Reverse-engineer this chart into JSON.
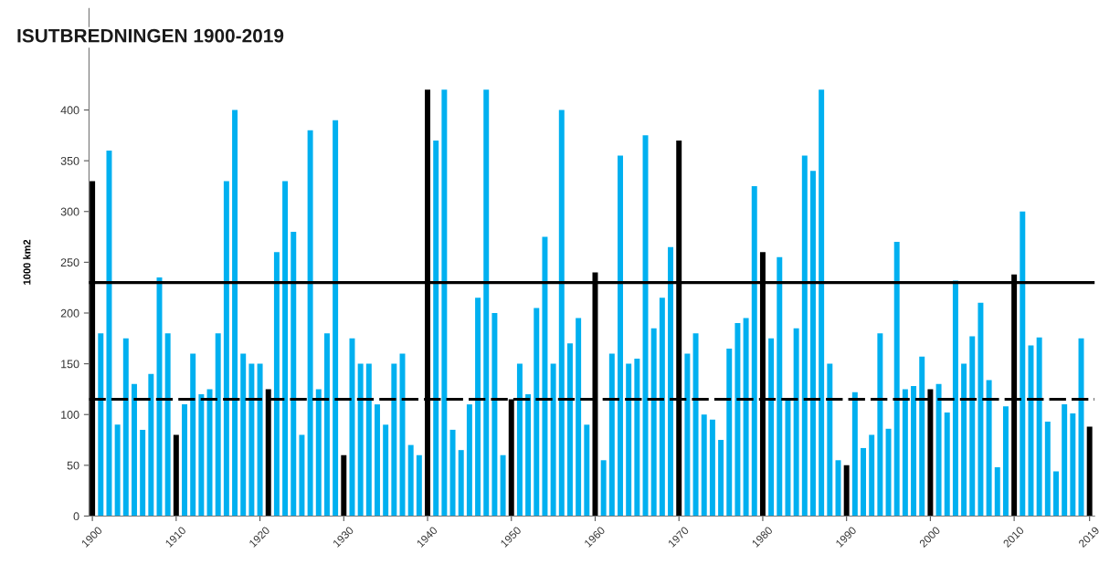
{
  "chart_data": {
    "type": "bar",
    "title": "ISUTBREDNINGEN 1900-2019",
    "ylabel": "1000 km2",
    "x": [
      1900,
      1901,
      1902,
      1903,
      1904,
      1905,
      1906,
      1907,
      1908,
      1909,
      1910,
      1911,
      1912,
      1913,
      1914,
      1915,
      1916,
      1917,
      1918,
      1919,
      1920,
      1921,
      1922,
      1923,
      1924,
      1925,
      1926,
      1927,
      1928,
      1929,
      1930,
      1931,
      1932,
      1933,
      1934,
      1935,
      1936,
      1937,
      1938,
      1939,
      1940,
      1941,
      1942,
      1943,
      1944,
      1945,
      1946,
      1947,
      1948,
      1949,
      1950,
      1951,
      1952,
      1953,
      1954,
      1955,
      1956,
      1957,
      1958,
      1959,
      1960,
      1961,
      1962,
      1963,
      1964,
      1965,
      1966,
      1967,
      1968,
      1969,
      1970,
      1971,
      1972,
      1973,
      1974,
      1975,
      1976,
      1977,
      1978,
      1979,
      1980,
      1981,
      1982,
      1983,
      1984,
      1985,
      1986,
      1987,
      1988,
      1989,
      1990,
      1991,
      1992,
      1993,
      1994,
      1995,
      1996,
      1997,
      1998,
      1999,
      2000,
      2001,
      2002,
      2003,
      2004,
      2005,
      2006,
      2007,
      2008,
      2009,
      2010,
      2011,
      2012,
      2013,
      2014,
      2015,
      2016,
      2017,
      2018,
      2019
    ],
    "values": [
      330,
      180,
      360,
      90,
      175,
      130,
      85,
      140,
      235,
      180,
      80,
      110,
      160,
      120,
      125,
      180,
      330,
      400,
      160,
      150,
      150,
      125,
      260,
      330,
      280,
      80,
      380,
      125,
      180,
      390,
      60,
      175,
      150,
      150,
      110,
      90,
      150,
      160,
      70,
      60,
      420,
      370,
      420,
      85,
      65,
      110,
      215,
      420,
      200,
      60,
      115,
      150,
      120,
      205,
      275,
      150,
      400,
      170,
      195,
      90,
      240,
      55,
      160,
      355,
      150,
      155,
      375,
      185,
      215,
      265,
      370,
      160,
      180,
      100,
      95,
      75,
      165,
      190,
      195,
      325,
      260,
      175,
      255,
      115,
      185,
      355,
      340,
      420,
      150,
      55,
      50,
      122,
      67,
      80,
      180,
      86,
      270,
      125,
      128,
      157,
      125,
      130,
      102,
      232,
      150,
      177,
      210,
      134,
      48,
      108,
      238,
      300,
      168,
      176,
      93,
      44,
      110,
      101,
      175,
      88
    ],
    "colors": [
      "#000000",
      "#00b0f0",
      "#00b0f0",
      "#00b0f0",
      "#00b0f0",
      "#00b0f0",
      "#00b0f0",
      "#00b0f0",
      "#00b0f0",
      "#00b0f0",
      "#000000",
      "#00b0f0",
      "#00b0f0",
      "#00b0f0",
      "#00b0f0",
      "#00b0f0",
      "#00b0f0",
      "#00b0f0",
      "#00b0f0",
      "#00b0f0",
      "#00b0f0",
      "#000000",
      "#00b0f0",
      "#00b0f0",
      "#00b0f0",
      "#00b0f0",
      "#00b0f0",
      "#00b0f0",
      "#00b0f0",
      "#00b0f0",
      "#000000",
      "#00b0f0",
      "#00b0f0",
      "#00b0f0",
      "#00b0f0",
      "#00b0f0",
      "#00b0f0",
      "#00b0f0",
      "#00b0f0",
      "#00b0f0",
      "#000000",
      "#00b0f0",
      "#00b0f0",
      "#00b0f0",
      "#00b0f0",
      "#00b0f0",
      "#00b0f0",
      "#00b0f0",
      "#00b0f0",
      "#00b0f0",
      "#000000",
      "#00b0f0",
      "#00b0f0",
      "#00b0f0",
      "#00b0f0",
      "#00b0f0",
      "#00b0f0",
      "#00b0f0",
      "#00b0f0",
      "#00b0f0",
      "#000000",
      "#00b0f0",
      "#00b0f0",
      "#00b0f0",
      "#00b0f0",
      "#00b0f0",
      "#00b0f0",
      "#00b0f0",
      "#00b0f0",
      "#00b0f0",
      "#000000",
      "#00b0f0",
      "#00b0f0",
      "#00b0f0",
      "#00b0f0",
      "#00b0f0",
      "#00b0f0",
      "#00b0f0",
      "#00b0f0",
      "#00b0f0",
      "#000000",
      "#00b0f0",
      "#00b0f0",
      "#00b0f0",
      "#00b0f0",
      "#00b0f0",
      "#00b0f0",
      "#00b0f0",
      "#00b0f0",
      "#00b0f0",
      "#000000",
      "#00b0f0",
      "#00b0f0",
      "#00b0f0",
      "#00b0f0",
      "#00b0f0",
      "#00b0f0",
      "#00b0f0",
      "#00b0f0",
      "#00b0f0",
      "#000000",
      "#00b0f0",
      "#00b0f0",
      "#00b0f0",
      "#00b0f0",
      "#00b0f0",
      "#00b0f0",
      "#00b0f0",
      "#00b0f0",
      "#00b0f0",
      "#000000",
      "#00b0f0",
      "#00b0f0",
      "#00b0f0",
      "#00b0f0",
      "#00b0f0",
      "#00b0f0",
      "#00b0f0",
      "#00b0f0",
      "#000000"
    ],
    "xlim": [
      1899.6,
      2019.6
    ],
    "xticks": [
      1900,
      1910,
      1920,
      1930,
      1940,
      1950,
      1960,
      1970,
      1980,
      1990,
      2000,
      2010,
      2019
    ],
    "ylim": [
      0,
      500
    ],
    "yticks": [
      0,
      50,
      100,
      150,
      200,
      250,
      300,
      350,
      400
    ],
    "ref_lines": [
      {
        "axis": "y",
        "value": 230,
        "color": "#000000",
        "line_style": "solid"
      },
      {
        "axis": "y",
        "value": 115,
        "color": "#000000",
        "line_style": "dashed"
      }
    ],
    "grid": false,
    "legend": false
  }
}
